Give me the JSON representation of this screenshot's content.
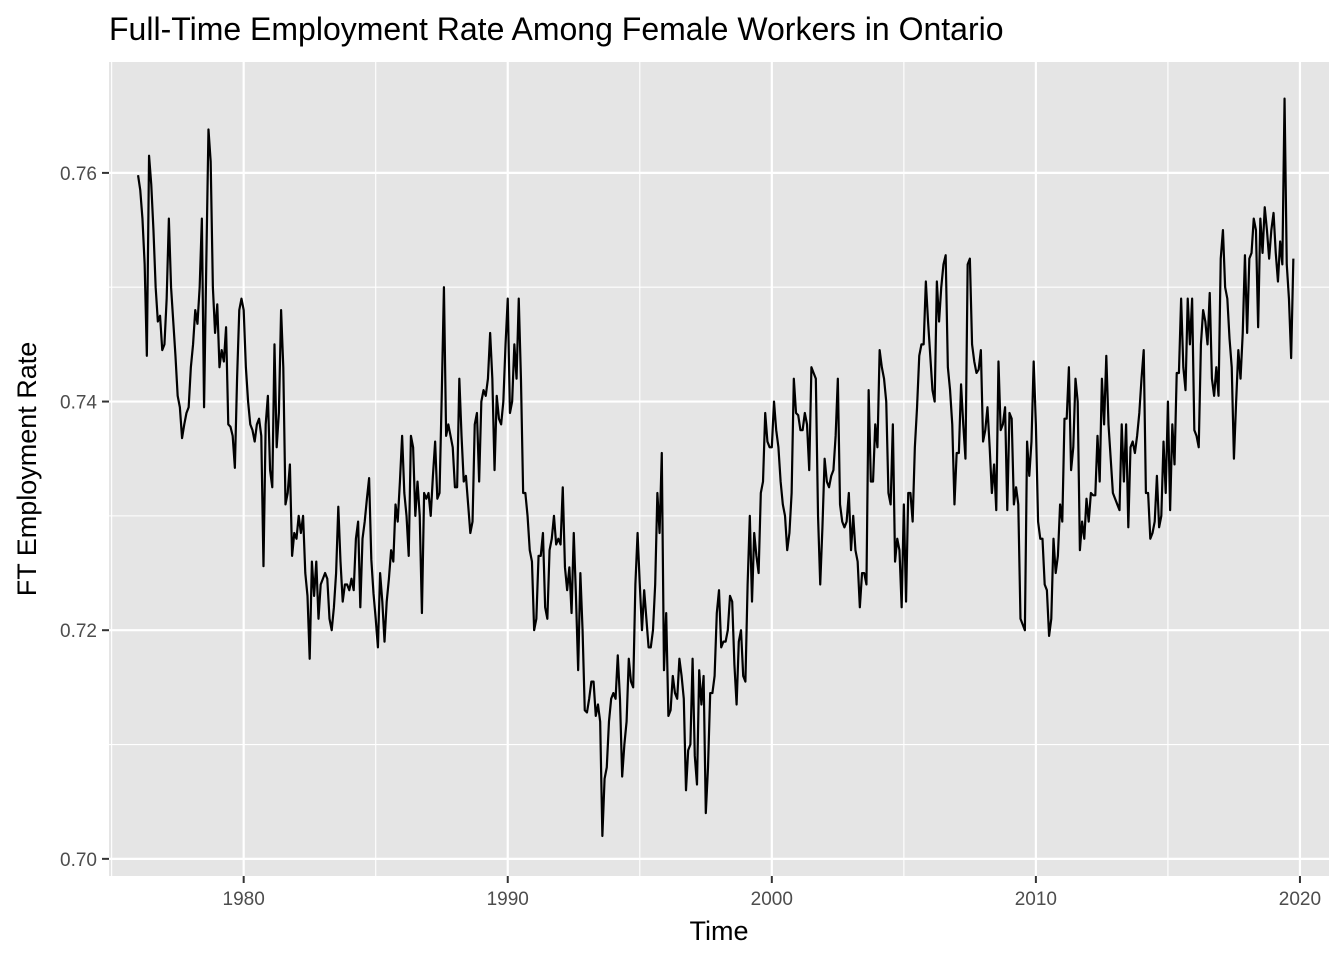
{
  "chart_data": {
    "type": "line",
    "title": "Full-Time Employment Rate Among Female Workers in Ontario",
    "xlabel": "Time",
    "ylabel": "FT Employment Rate",
    "xlim": [
      1974.9,
      2021.1
    ],
    "ylim": [
      0.6985,
      0.7697
    ],
    "x_ticks": [
      1980,
      1990,
      2000,
      2010,
      2020
    ],
    "x_tick_labels": [
      "1980",
      "1990",
      "2000",
      "2010",
      "2020"
    ],
    "y_ticks": [
      0.7,
      0.72,
      0.74,
      0.76
    ],
    "y_tick_labels": [
      "0.70",
      "0.72",
      "0.74",
      "0.76"
    ],
    "grid": true,
    "panel_background": "#e5e5e5",
    "grid_color": "#ffffff",
    "line_color": "#000000",
    "series": [
      {
        "x_start": 1976.0,
        "x_step": 0.0833333,
        "values": [
          0.7598,
          0.7585,
          0.756,
          0.752,
          0.744,
          0.7615,
          0.759,
          0.755,
          0.75,
          0.747,
          0.7475,
          0.7445,
          0.745,
          0.749,
          0.756,
          0.75,
          0.747,
          0.744,
          0.7405,
          0.7395,
          0.7368,
          0.738,
          0.739,
          0.7395,
          0.743,
          0.745,
          0.748,
          0.7468,
          0.75,
          0.756,
          0.7395,
          0.752,
          0.7638,
          0.761,
          0.75,
          0.746,
          0.7485,
          0.743,
          0.7445,
          0.7435,
          0.7465,
          0.738,
          0.7378,
          0.737,
          0.7342,
          0.742,
          0.748,
          0.749,
          0.748,
          0.743,
          0.74,
          0.738,
          0.7375,
          0.7365,
          0.738,
          0.7385,
          0.737,
          0.7256,
          0.738,
          0.7405,
          0.734,
          0.7325,
          0.745,
          0.736,
          0.739,
          0.748,
          0.743,
          0.731,
          0.732,
          0.7345,
          0.7265,
          0.7285,
          0.728,
          0.73,
          0.7285,
          0.73,
          0.725,
          0.723,
          0.7175,
          0.726,
          0.723,
          0.726,
          0.721,
          0.724,
          0.7245,
          0.725,
          0.7245,
          0.721,
          0.72,
          0.722,
          0.725,
          0.7308,
          0.726,
          0.7225,
          0.724,
          0.724,
          0.7235,
          0.7245,
          0.7235,
          0.728,
          0.7295,
          0.722,
          0.728,
          0.7295,
          0.7315,
          0.7333,
          0.7262,
          0.7232,
          0.721,
          0.7185,
          0.725,
          0.7225,
          0.719,
          0.7225,
          0.7245,
          0.727,
          0.726,
          0.731,
          0.7295,
          0.733,
          0.737,
          0.732,
          0.73,
          0.7265,
          0.737,
          0.736,
          0.73,
          0.733,
          0.73,
          0.7215,
          0.732,
          0.7315,
          0.732,
          0.73,
          0.7335,
          0.7365,
          0.7315,
          0.732,
          0.7405,
          0.75,
          0.737,
          0.738,
          0.737,
          0.736,
          0.7325,
          0.7325,
          0.742,
          0.737,
          0.733,
          0.7335,
          0.731,
          0.7285,
          0.7295,
          0.738,
          0.739,
          0.733,
          0.74,
          0.741,
          0.7405,
          0.742,
          0.746,
          0.742,
          0.734,
          0.7405,
          0.7385,
          0.738,
          0.74,
          0.745,
          0.749,
          0.739,
          0.74,
          0.745,
          0.742,
          0.749,
          0.742,
          0.732,
          0.732,
          0.73,
          0.727,
          0.726,
          0.72,
          0.721,
          0.7265,
          0.7265,
          0.7285,
          0.722,
          0.721,
          0.727,
          0.728,
          0.73,
          0.7275,
          0.728,
          0.7275,
          0.7325,
          0.7255,
          0.7235,
          0.7255,
          0.7215,
          0.7285,
          0.723,
          0.7165,
          0.725,
          0.72,
          0.713,
          0.7128,
          0.714,
          0.7155,
          0.7155,
          0.7125,
          0.7135,
          0.712,
          0.702,
          0.707,
          0.708,
          0.712,
          0.714,
          0.7145,
          0.714,
          0.7178,
          0.714,
          0.7072,
          0.71,
          0.712,
          0.7175,
          0.7155,
          0.715,
          0.724,
          0.7285,
          0.724,
          0.72,
          0.7235,
          0.721,
          0.7185,
          0.7185,
          0.72,
          0.724,
          0.732,
          0.7285,
          0.7355,
          0.7165,
          0.7215,
          0.7125,
          0.713,
          0.716,
          0.7145,
          0.714,
          0.7175,
          0.716,
          0.714,
          0.706,
          0.7095,
          0.71,
          0.7175,
          0.709,
          0.7065,
          0.7165,
          0.7135,
          0.716,
          0.704,
          0.708,
          0.7145,
          0.7145,
          0.716,
          0.7215,
          0.7235,
          0.7185,
          0.719,
          0.719,
          0.72,
          0.723,
          0.7225,
          0.717,
          0.7135,
          0.719,
          0.72,
          0.716,
          0.7155,
          0.724,
          0.73,
          0.7225,
          0.7285,
          0.7265,
          0.725,
          0.732,
          0.733,
          0.739,
          0.7365,
          0.736,
          0.736,
          0.74,
          0.7375,
          0.736,
          0.733,
          0.731,
          0.73,
          0.727,
          0.7285,
          0.732,
          0.742,
          0.739,
          0.7388,
          0.7375,
          0.7375,
          0.739,
          0.738,
          0.734,
          0.743,
          0.7425,
          0.742,
          0.73,
          0.724,
          0.729,
          0.735,
          0.733,
          0.7325,
          0.7335,
          0.734,
          0.737,
          0.742,
          0.731,
          0.7295,
          0.729,
          0.7295,
          0.732,
          0.727,
          0.73,
          0.727,
          0.726,
          0.722,
          0.725,
          0.725,
          0.724,
          0.741,
          0.733,
          0.733,
          0.738,
          0.736,
          0.7445,
          0.743,
          0.742,
          0.74,
          0.732,
          0.731,
          0.738,
          0.726,
          0.728,
          0.727,
          0.722,
          0.731,
          0.7225,
          0.732,
          0.732,
          0.7295,
          0.736,
          0.7395,
          0.744,
          0.745,
          0.745,
          0.7505,
          0.747,
          0.744,
          0.741,
          0.74,
          0.7505,
          0.747,
          0.75,
          0.752,
          0.7528,
          0.743,
          0.741,
          0.738,
          0.731,
          0.7355,
          0.7355,
          0.7415,
          0.738,
          0.735,
          0.752,
          0.7525,
          0.745,
          0.7435,
          0.7425,
          0.7428,
          0.7445,
          0.7365,
          0.7375,
          0.7395,
          0.736,
          0.732,
          0.7345,
          0.7305,
          0.7435,
          0.7375,
          0.738,
          0.7395,
          0.7305,
          0.739,
          0.7385,
          0.731,
          0.7325,
          0.731,
          0.721,
          0.7205,
          0.72,
          0.7365,
          0.7335,
          0.7365,
          0.7435,
          0.738,
          0.7295,
          0.728,
          0.728,
          0.724,
          0.7235,
          0.7195,
          0.721,
          0.728,
          0.725,
          0.7265,
          0.731,
          0.7295,
          0.7385,
          0.7385,
          0.743,
          0.734,
          0.736,
          0.742,
          0.74,
          0.727,
          0.7295,
          0.728,
          0.7315,
          0.7295,
          0.732,
          0.7318,
          0.7318,
          0.737,
          0.733,
          0.742,
          0.738,
          0.744,
          0.738,
          0.735,
          0.732,
          0.7315,
          0.731,
          0.7305,
          0.738,
          0.733,
          0.738,
          0.729,
          0.736,
          0.7365,
          0.7355,
          0.737,
          0.739,
          0.742,
          0.7445,
          0.732,
          0.732,
          0.728,
          0.7285,
          0.7295,
          0.7335,
          0.729,
          0.73,
          0.7365,
          0.732,
          0.74,
          0.7305,
          0.738,
          0.7345,
          0.7425,
          0.7425,
          0.749,
          0.743,
          0.741,
          0.749,
          0.745,
          0.749,
          0.7375,
          0.737,
          0.736,
          0.745,
          0.748,
          0.747,
          0.745,
          0.7495,
          0.742,
          0.7405,
          0.743,
          0.7405,
          0.7525,
          0.755,
          0.75,
          0.749,
          0.7455,
          0.743,
          0.735,
          0.74,
          0.7445,
          0.742,
          0.746,
          0.7528,
          0.746,
          0.7525,
          0.753,
          0.756,
          0.755,
          0.7465,
          0.756,
          0.753,
          0.757,
          0.755,
          0.7525,
          0.755,
          0.7565,
          0.753,
          0.7505,
          0.754,
          0.752,
          0.7665,
          0.752,
          0.749,
          0.7438,
          0.7525
        ]
      }
    ]
  }
}
